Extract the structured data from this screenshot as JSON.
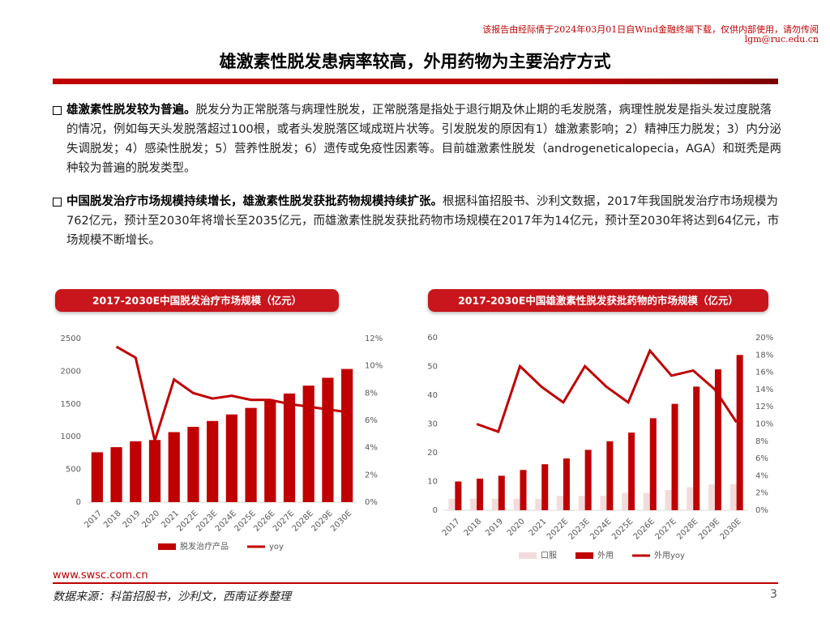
{
  "watermark": [
    "该报告由经际倩于2024年03月01日自Wind金融终端下载，仅供内部使用，请勿传阅",
    "lgm@ruc.edu.cn"
  ],
  "header": {
    "title": "雄激素性脱发患病率较高，外用药物为主要治疗方式"
  },
  "bullets": [
    {
      "bold": "雄激素性脱发较为普遍。",
      "text": "脱发分为正常脱落与病理性脱发，正常脱落是指处于退行期及休止期的毛发脱落，病理性脱发是指头发过度脱落的情况，例如每天头发脱落超过100根，或者头发脱落区域成斑片状等。引发脱发的原因有1）雄激素影响；2）精神压力脱发；3）内分泌失调脱发；4）感染性脱发；5）营养性脱发；6）遗传或免疫性因素等。目前雄激素性脱发（androgeneticalopecia，AGA）和斑秃是两种较为普遍的脱发类型。"
    },
    {
      "bold": "中国脱发治疗市场规模持续增长，雄激素性脱发获批药物规模持续扩张。",
      "text": "根据科笛招股书、沙利文数据，2017年我国脱发治疗市场规模为762亿元，预计至2030年将增长至2035亿元，而雄激素性脱发获批药物市场规模在2017年为14亿元，预计至2030年将达到64亿元，市场规模不断增长。"
    }
  ],
  "chart_data": [
    {
      "type": "bar-line",
      "title": "2017-2030E中国脱发治疗市场规模（亿元）",
      "categories": [
        "2017",
        "2018",
        "2019",
        "2020",
        "2021",
        "2022E",
        "2023E",
        "2024E",
        "2025E",
        "2026E",
        "2027E",
        "2028E",
        "2029E",
        "2030E"
      ],
      "series": [
        {
          "name": "脱发治疗产品",
          "type": "bar",
          "color": "#c00000",
          "values": [
            762,
            840,
            930,
            950,
            1070,
            1150,
            1240,
            1340,
            1440,
            1550,
            1660,
            1780,
            1900,
            2035
          ]
        },
        {
          "name": "yoy",
          "type": "line",
          "axis": "y2",
          "color": "#c00000",
          "values": [
            null,
            11.4,
            10.6,
            4.5,
            9.0,
            8.0,
            7.6,
            7.8,
            7.5,
            7.5,
            7.2,
            7.0,
            6.8,
            6.6
          ]
        }
      ],
      "ylim": [
        0,
        2500
      ],
      "yticks": [
        0,
        500,
        1000,
        1500,
        2000,
        2500
      ],
      "y2lim": [
        0,
        12
      ],
      "y2ticks": [
        {
          "value": 0,
          "label": "0%"
        },
        {
          "value": 2,
          "label": "2%"
        },
        {
          "value": 4,
          "label": "4%"
        },
        {
          "value": 6,
          "label": "6%"
        },
        {
          "value": 8,
          "label": "8%"
        },
        {
          "value": 10,
          "label": "10%"
        },
        {
          "value": 12,
          "label": "12%"
        }
      ],
      "legend": "bottom"
    },
    {
      "type": "bar-line",
      "title": "2017-2030E中国雄激素性脱发获批药物的市场规模（亿元）",
      "categories": [
        "2017",
        "2018",
        "2019",
        "2020",
        "2021",
        "2022E",
        "2023E",
        "2024E",
        "2025E",
        "2026E",
        "2027E",
        "2028E",
        "2029E",
        "2030E"
      ],
      "series": [
        {
          "name": "口服",
          "type": "bar",
          "color": "#f2dcdb",
          "values": [
            4,
            4,
            4,
            4,
            4,
            5,
            5,
            5,
            6,
            6,
            7,
            8,
            9,
            9
          ]
        },
        {
          "name": "外用",
          "type": "bar",
          "color": "#c00000",
          "values": [
            10,
            11,
            12,
            14,
            16,
            18,
            21,
            24,
            27,
            32,
            37,
            43,
            49,
            54
          ]
        },
        {
          "name": "外用yoy",
          "type": "line",
          "axis": "y2",
          "color": "#c00000",
          "values": [
            null,
            10.0,
            9.1,
            16.7,
            14.3,
            12.5,
            16.7,
            14.3,
            12.5,
            18.5,
            15.6,
            16.2,
            14.0,
            10.2
          ]
        }
      ],
      "ylim": [
        0,
        60
      ],
      "yticks": [
        0,
        10,
        20,
        30,
        40,
        50,
        60
      ],
      "y2lim": [
        0,
        20
      ],
      "y2ticks": [
        {
          "value": 0,
          "label": "0%"
        },
        {
          "value": 2,
          "label": "2%"
        },
        {
          "value": 4,
          "label": "4%"
        },
        {
          "value": 6,
          "label": "6%"
        },
        {
          "value": 8,
          "label": "8%"
        },
        {
          "value": 10,
          "label": "10%"
        },
        {
          "value": 12,
          "label": "12%"
        },
        {
          "value": 14,
          "label": "14%"
        },
        {
          "value": 16,
          "label": "16%"
        },
        {
          "value": 18,
          "label": "18%"
        },
        {
          "value": 20,
          "label": "20%"
        }
      ],
      "legend": "bottom"
    }
  ],
  "footer": {
    "website": "www.swsc.com.cn",
    "source": "数据来源：科笛招股书，沙利文，西南证券整理",
    "page": "3"
  }
}
